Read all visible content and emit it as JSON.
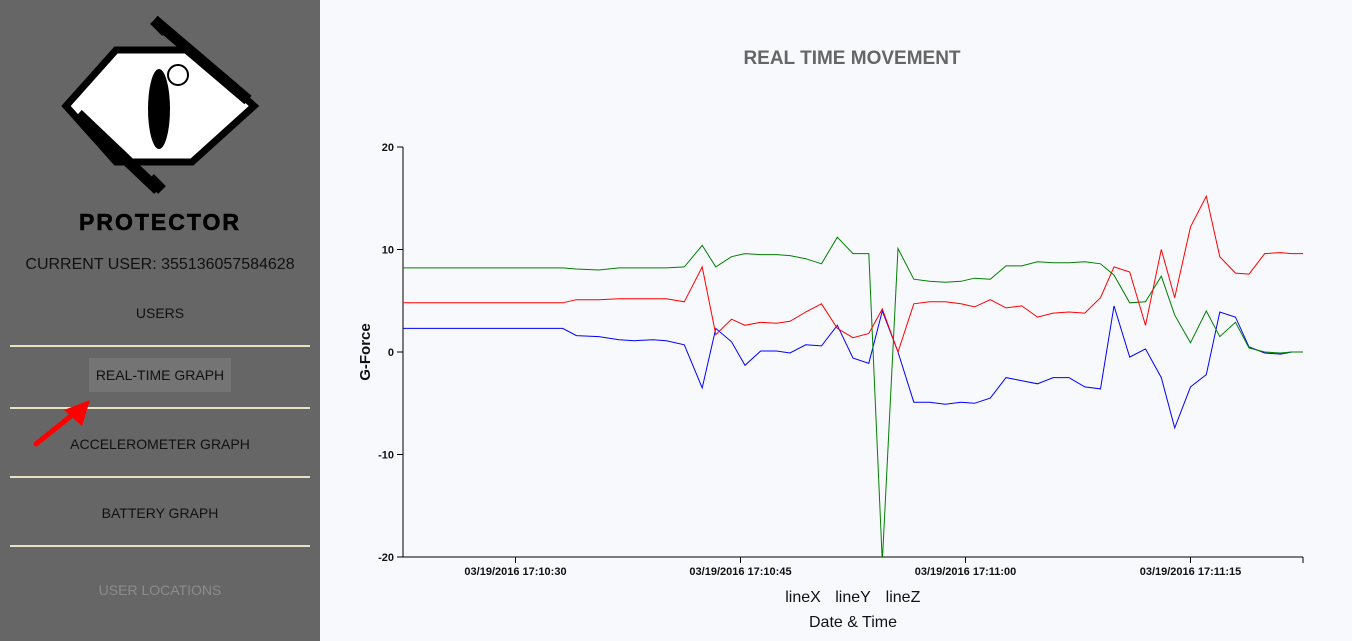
{
  "sidebar": {
    "logo_text": "PROTECTOR",
    "current_user": "CURRENT USER: 355136057584628",
    "items": [
      {
        "label": "USERS",
        "state": "normal"
      },
      {
        "label": "REAL-TIME GRAPH",
        "state": "active"
      },
      {
        "label": "ACCELEROMETER GRAPH",
        "state": "normal"
      },
      {
        "label": "BATTERY GRAPH",
        "state": "normal"
      },
      {
        "label": "USER LOCATIONS",
        "state": "disabled"
      }
    ]
  },
  "colors": {
    "sidebar_bg": "#666666",
    "accent_arrow": "#ff0000",
    "lineX": "#0000ff",
    "lineY": "#008000",
    "lineZ": "#ff0000"
  },
  "chart_data": {
    "type": "line",
    "title": "REAL TIME MOVEMENT",
    "xlabel": "Date & Time",
    "ylabel": "G-Force",
    "ylim": [
      -20,
      20
    ],
    "yticks": [
      20,
      10,
      0,
      -10,
      -20
    ],
    "xlim_seconds": [
      17.5,
      37.5
    ],
    "xticks": [
      {
        "t": 20,
        "label": "03/19/2016 17:10:30"
      },
      {
        "t": 25,
        "label": "03/19/2016 17:10:45"
      },
      {
        "t": 30,
        "label": "03/19/2016 17:11:00"
      },
      {
        "t": 35,
        "label": "03/19/2016 17:11:15"
      }
    ],
    "legend": [
      "lineX",
      "lineY",
      "lineZ"
    ],
    "legend_position": "bottom",
    "series": [
      {
        "name": "lineX",
        "color": "#0000ff",
        "points": [
          [
            17.5,
            2.3
          ],
          [
            21.05,
            2.3
          ],
          [
            21.35,
            1.6
          ],
          [
            21.85,
            1.5
          ],
          [
            22.3,
            1.2
          ],
          [
            22.65,
            1.1
          ],
          [
            23.05,
            1.2
          ],
          [
            23.35,
            1.1
          ],
          [
            23.75,
            0.7
          ],
          [
            24.15,
            -3.5
          ],
          [
            24.45,
            2.3
          ],
          [
            24.8,
            1.0
          ],
          [
            25.1,
            -1.3
          ],
          [
            25.45,
            0.1
          ],
          [
            25.8,
            0.1
          ],
          [
            26.1,
            -0.1
          ],
          [
            26.45,
            0.7
          ],
          [
            26.8,
            0.6
          ],
          [
            27.15,
            2.6
          ],
          [
            27.5,
            -0.6
          ],
          [
            27.85,
            -1.1
          ],
          [
            28.15,
            4.0
          ],
          [
            28.5,
            0.0
          ],
          [
            28.85,
            -4.9
          ],
          [
            29.2,
            -4.9
          ],
          [
            29.55,
            -5.1
          ],
          [
            29.9,
            -4.9
          ],
          [
            30.2,
            -5.0
          ],
          [
            30.55,
            -4.5
          ],
          [
            30.9,
            -2.5
          ],
          [
            31.25,
            -2.8
          ],
          [
            31.6,
            -3.1
          ],
          [
            31.95,
            -2.5
          ],
          [
            32.3,
            -2.5
          ],
          [
            32.65,
            -3.4
          ],
          [
            33.0,
            -3.6
          ],
          [
            33.3,
            4.5
          ],
          [
            33.65,
            -0.5
          ],
          [
            34.0,
            0.3
          ],
          [
            34.35,
            -2.5
          ],
          [
            34.65,
            -7.4
          ],
          [
            35.0,
            -3.4
          ],
          [
            35.35,
            -2.2
          ],
          [
            35.65,
            3.9
          ],
          [
            36.0,
            3.4
          ],
          [
            36.3,
            0.5
          ],
          [
            36.65,
            -0.1
          ],
          [
            37.0,
            -0.2
          ],
          [
            37.25,
            0.0
          ],
          [
            37.5,
            0.0
          ]
        ]
      },
      {
        "name": "lineY",
        "color": "#008000",
        "points": [
          [
            17.5,
            8.2
          ],
          [
            21.05,
            8.2
          ],
          [
            21.35,
            8.1
          ],
          [
            21.85,
            8.0
          ],
          [
            22.3,
            8.2
          ],
          [
            22.65,
            8.2
          ],
          [
            23.05,
            8.2
          ],
          [
            23.35,
            8.2
          ],
          [
            23.75,
            8.3
          ],
          [
            24.15,
            10.4
          ],
          [
            24.45,
            8.3
          ],
          [
            24.8,
            9.3
          ],
          [
            25.1,
            9.6
          ],
          [
            25.45,
            9.5
          ],
          [
            25.8,
            9.5
          ],
          [
            26.1,
            9.4
          ],
          [
            26.45,
            9.1
          ],
          [
            26.8,
            8.6
          ],
          [
            27.15,
            11.2
          ],
          [
            27.5,
            9.6
          ],
          [
            27.85,
            9.6
          ],
          [
            28.15,
            -20.5
          ],
          [
            28.5,
            10.1
          ],
          [
            28.85,
            7.1
          ],
          [
            29.2,
            6.9
          ],
          [
            29.55,
            6.8
          ],
          [
            29.9,
            6.9
          ],
          [
            30.2,
            7.2
          ],
          [
            30.55,
            7.1
          ],
          [
            30.9,
            8.4
          ],
          [
            31.25,
            8.4
          ],
          [
            31.6,
            8.8
          ],
          [
            31.95,
            8.7
          ],
          [
            32.3,
            8.7
          ],
          [
            32.65,
            8.8
          ],
          [
            33.0,
            8.6
          ],
          [
            33.3,
            7.5
          ],
          [
            33.65,
            4.8
          ],
          [
            34.0,
            4.9
          ],
          [
            34.35,
            7.4
          ],
          [
            34.65,
            3.6
          ],
          [
            35.0,
            0.9
          ],
          [
            35.35,
            4.0
          ],
          [
            35.65,
            1.5
          ],
          [
            36.0,
            2.9
          ],
          [
            36.3,
            0.4
          ],
          [
            36.65,
            0.0
          ],
          [
            37.0,
            -0.1
          ],
          [
            37.25,
            0.0
          ],
          [
            37.5,
            0.0
          ]
        ]
      },
      {
        "name": "lineZ",
        "color": "#ff0000",
        "points": [
          [
            17.5,
            4.8
          ],
          [
            21.05,
            4.8
          ],
          [
            21.35,
            5.1
          ],
          [
            21.85,
            5.1
          ],
          [
            22.3,
            5.2
          ],
          [
            22.65,
            5.2
          ],
          [
            23.05,
            5.2
          ],
          [
            23.35,
            5.2
          ],
          [
            23.75,
            4.9
          ],
          [
            24.15,
            8.3
          ],
          [
            24.45,
            1.7
          ],
          [
            24.8,
            3.2
          ],
          [
            25.1,
            2.6
          ],
          [
            25.45,
            2.9
          ],
          [
            25.8,
            2.8
          ],
          [
            26.1,
            3.0
          ],
          [
            26.45,
            3.9
          ],
          [
            26.8,
            4.7
          ],
          [
            27.15,
            2.3
          ],
          [
            27.5,
            1.4
          ],
          [
            27.85,
            1.8
          ],
          [
            28.15,
            4.2
          ],
          [
            28.5,
            0.0
          ],
          [
            28.85,
            4.7
          ],
          [
            29.2,
            4.9
          ],
          [
            29.55,
            4.9
          ],
          [
            29.9,
            4.7
          ],
          [
            30.2,
            4.4
          ],
          [
            30.55,
            5.1
          ],
          [
            30.9,
            4.3
          ],
          [
            31.25,
            4.5
          ],
          [
            31.6,
            3.4
          ],
          [
            31.95,
            3.8
          ],
          [
            32.3,
            3.9
          ],
          [
            32.65,
            3.8
          ],
          [
            33.0,
            5.3
          ],
          [
            33.3,
            8.3
          ],
          [
            33.65,
            7.8
          ],
          [
            34.0,
            2.6
          ],
          [
            34.35,
            10.0
          ],
          [
            34.65,
            5.3
          ],
          [
            35.0,
            12.2
          ],
          [
            35.35,
            15.2
          ],
          [
            35.65,
            9.3
          ],
          [
            36.0,
            7.7
          ],
          [
            36.3,
            7.6
          ],
          [
            36.65,
            9.6
          ],
          [
            37.0,
            9.7
          ],
          [
            37.25,
            9.6
          ],
          [
            37.5,
            9.6
          ]
        ]
      }
    ]
  }
}
